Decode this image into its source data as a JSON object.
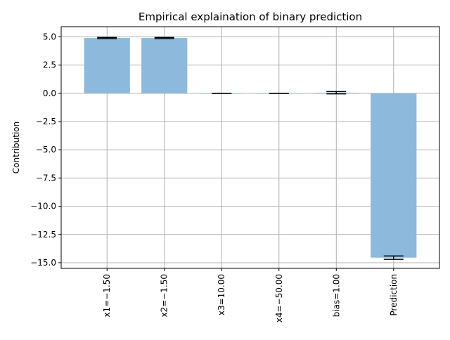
{
  "chart_data": {
    "type": "bar",
    "title": "Empirical explaination of binary prediction",
    "xlabel": "",
    "ylabel": "Contribution",
    "categories": [
      "x1=−1.50",
      "x2=−1.50",
      "x3=10.00",
      "x4=−50.00",
      "bias=1.00",
      "Prediction"
    ],
    "values": [
      4.9,
      4.9,
      0.0,
      0.0,
      0.05,
      -14.55
    ],
    "error_bars": [
      0.05,
      0.05,
      0.0,
      0.0,
      0.1,
      0.15
    ],
    "ylim": [
      -15.5,
      5.9
    ],
    "yticks": [
      5.0,
      2.5,
      0.0,
      -2.5,
      -5.0,
      -7.5,
      -10.0,
      -12.5,
      -15.0
    ],
    "ytick_labels": [
      "5.0",
      "2.5",
      "0.0",
      "−2.5",
      "−5.0",
      "−7.5",
      "−10.0",
      "−12.5",
      "−15.0"
    ],
    "grid": true,
    "bar_color": "#8cb9dc",
    "error_color": "#000000",
    "grid_color": "#b0b0b0"
  }
}
